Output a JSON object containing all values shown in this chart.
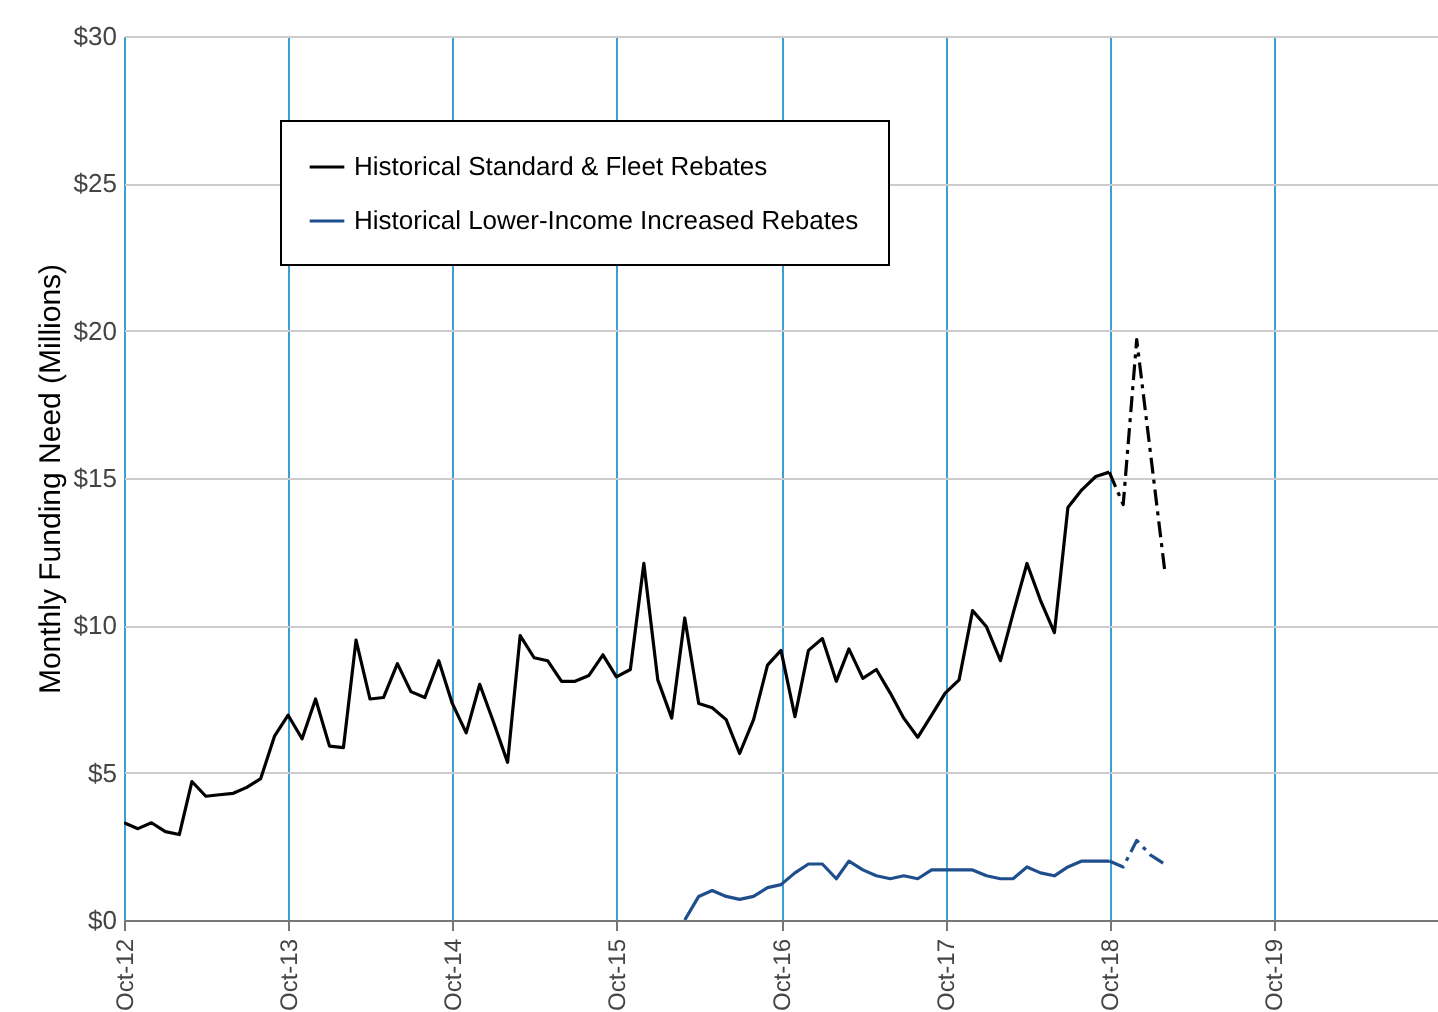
{
  "chart_data": {
    "type": "line",
    "ylabel": "Monthly Funding Need (Millions)",
    "legend": "top left",
    "grid": true,
    "xlim": [
      "2012-10",
      "2020-10"
    ],
    "xticks": [
      {
        "value": "2012-10",
        "label": "Oct-12"
      },
      {
        "value": "2013-10",
        "label": "Oct-13"
      },
      {
        "value": "2014-10",
        "label": "Oct-14"
      },
      {
        "value": "2015-10",
        "label": "Oct-15"
      },
      {
        "value": "2016-10",
        "label": "Oct-16"
      },
      {
        "value": "2017-10",
        "label": "Oct-17"
      },
      {
        "value": "2018-10",
        "label": "Oct-18"
      },
      {
        "value": "2019-10",
        "label": "Oct-19"
      }
    ],
    "ylim": [
      0,
      30
    ],
    "yticks": [
      {
        "value": 0,
        "label": "$0"
      },
      {
        "value": 5,
        "label": "$5"
      },
      {
        "value": 10,
        "label": "$10"
      },
      {
        "value": 15,
        "label": "$15"
      },
      {
        "value": 20,
        "label": "$20"
      },
      {
        "value": 25,
        "label": "$25"
      },
      {
        "value": 30,
        "label": "$30"
      }
    ],
    "x": [
      "2012-10",
      "2012-11",
      "2012-12",
      "2013-01",
      "2013-02",
      "2013-03",
      "2013-04",
      "2013-05",
      "2013-06",
      "2013-07",
      "2013-08",
      "2013-09",
      "2013-10",
      "2013-11",
      "2013-12",
      "2014-01",
      "2014-02",
      "2014-03",
      "2014-04",
      "2014-05",
      "2014-06",
      "2014-07",
      "2014-08",
      "2014-09",
      "2014-10",
      "2014-11",
      "2014-12",
      "2015-01",
      "2015-02",
      "2015-03",
      "2015-04",
      "2015-05",
      "2015-06",
      "2015-07",
      "2015-08",
      "2015-09",
      "2015-10",
      "2015-11",
      "2015-12",
      "2016-01",
      "2016-02",
      "2016-03",
      "2016-04",
      "2016-05",
      "2016-06",
      "2016-07",
      "2016-08",
      "2016-09",
      "2016-10",
      "2016-11",
      "2016-12",
      "2017-01",
      "2017-02",
      "2017-03",
      "2017-04",
      "2017-05",
      "2017-06",
      "2017-07",
      "2017-08",
      "2017-09",
      "2017-10",
      "2017-11",
      "2017-12",
      "2018-01",
      "2018-02",
      "2018-03",
      "2018-04",
      "2018-05",
      "2018-06",
      "2018-07",
      "2018-08",
      "2018-09",
      "2018-10"
    ],
    "series": [
      {
        "name": "Historical Standard & Fleet Rebates",
        "color": "#000000",
        "line_style": "solid",
        "values": [
          3.3,
          3.1,
          3.3,
          3.0,
          2.9,
          4.7,
          4.2,
          4.25,
          4.3,
          4.5,
          4.8,
          6.25,
          6.95,
          6.15,
          7.5,
          5.9,
          5.85,
          9.5,
          7.5,
          7.55,
          8.7,
          7.75,
          7.55,
          8.8,
          7.35,
          6.35,
          8.0,
          6.7,
          5.35,
          9.65,
          8.9,
          8.8,
          8.1,
          8.1,
          8.3,
          9.0,
          8.25,
          8.5,
          12.1,
          8.15,
          6.85,
          10.25,
          7.35,
          7.2,
          6.8,
          5.65,
          6.8,
          8.65,
          9.15,
          6.9,
          9.15,
          9.55,
          8.1,
          9.2,
          8.2,
          8.5,
          7.7,
          6.85,
          6.2,
          6.95,
          7.7,
          8.15,
          10.5,
          9.95,
          8.8,
          10.4,
          12.1,
          10.85,
          9.75,
          14.0,
          14.6,
          15.05,
          15.2
        ]
      },
      {
        "name": "Historical Lower-Income Increased Rebates",
        "color": "#1f4e8c",
        "line_style": "solid",
        "x": [
          "2016-03",
          "2016-04",
          "2016-05",
          "2016-06",
          "2016-07",
          "2016-08",
          "2016-09",
          "2016-10",
          "2016-11",
          "2016-12",
          "2017-01",
          "2017-02",
          "2017-03",
          "2017-04",
          "2017-05",
          "2017-06",
          "2017-07",
          "2017-08",
          "2017-09",
          "2017-10",
          "2017-11",
          "2017-12",
          "2018-01",
          "2018-02",
          "2018-03",
          "2018-04",
          "2018-05",
          "2018-06",
          "2018-07",
          "2018-08",
          "2018-09",
          "2018-10"
        ],
        "values": [
          0,
          0.8,
          1.0,
          0.8,
          0.7,
          0.8,
          1.1,
          1.2,
          1.6,
          1.9,
          1.9,
          1.4,
          2.0,
          1.7,
          1.5,
          1.4,
          1.5,
          1.4,
          1.7,
          1.7,
          1.7,
          1.7,
          1.5,
          1.4,
          1.4,
          1.8,
          1.6,
          1.5,
          1.8,
          2.0,
          2.0,
          2.0
        ]
      },
      {
        "color": "#000000",
        "line_style": "dashed",
        "x": [
          "2018-10",
          "2018-11",
          "2018-12",
          "2019-01",
          "2019-02"
        ],
        "values": [
          15.2,
          14.1,
          19.7,
          15.8,
          11.9
        ]
      },
      {
        "color": "#1f4e8c",
        "line_style": "dashed",
        "x": [
          "2018-10",
          "2018-11",
          "2018-12",
          "2019-01",
          "2019-02"
        ],
        "values": [
          2.0,
          1.8,
          2.7,
          2.2,
          1.9
        ]
      }
    ]
  }
}
